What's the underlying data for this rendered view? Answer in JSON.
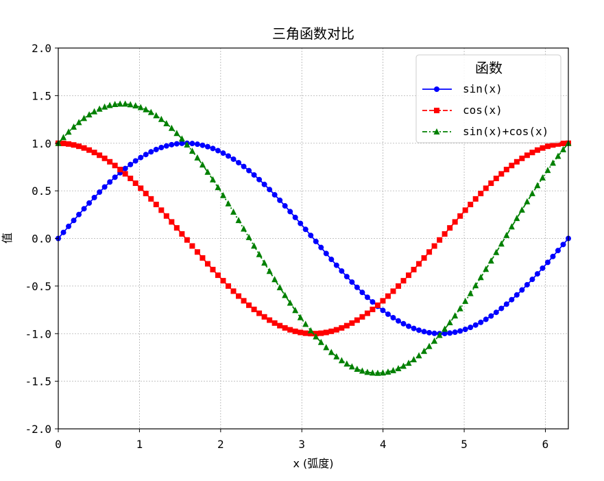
{
  "chart_data": {
    "type": "line",
    "title": "三角函数对比",
    "xlabel": "x (弧度)",
    "ylabel": "值",
    "xlim": [
      0,
      6.283
    ],
    "ylim": [
      -2.0,
      2.0
    ],
    "x_ticks": [
      0,
      1,
      2,
      3,
      4,
      5,
      6
    ],
    "x_tick_labels": [
      "0",
      "1",
      "2",
      "3",
      "4",
      "5",
      "6"
    ],
    "y_ticks": [
      -2.0,
      -1.5,
      -1.0,
      -0.5,
      0.0,
      0.5,
      1.0,
      1.5,
      2.0
    ],
    "y_tick_labels": [
      "-2.0",
      "-1.5",
      "-1.0",
      "-0.5",
      "0.0",
      "0.5",
      "1.0",
      "1.5",
      "2.0"
    ],
    "grid": true,
    "legend": {
      "title": "函数",
      "placement": "top-right"
    },
    "x": [
      0.0,
      0.2,
      0.4,
      0.6,
      0.8,
      1.0,
      1.2,
      1.4,
      1.6,
      1.8,
      2.0,
      2.2,
      2.4,
      2.6,
      2.8,
      3.0,
      3.2,
      3.4,
      3.6,
      3.8,
      4.0,
      4.2,
      4.4,
      4.6,
      4.8,
      5.0,
      5.2,
      5.4,
      5.6,
      5.8,
      6.0,
      6.283
    ],
    "series": [
      {
        "name": "sin(x)",
        "color": "#0000ff",
        "marker": "circle",
        "linestyle": "solid",
        "values": [
          0.0,
          0.199,
          0.389,
          0.565,
          0.717,
          0.841,
          0.932,
          0.985,
          1.0,
          0.974,
          0.909,
          0.808,
          0.675,
          0.516,
          0.335,
          0.141,
          -0.058,
          -0.256,
          -0.443,
          -0.612,
          -0.757,
          -0.872,
          -0.952,
          -0.994,
          -0.996,
          -0.959,
          -0.883,
          -0.773,
          -0.631,
          -0.465,
          -0.279,
          0.0
        ]
      },
      {
        "name": "cos(x)",
        "color": "#ff0000",
        "marker": "square",
        "linestyle": "dashed",
        "values": [
          1.0,
          0.98,
          0.921,
          0.825,
          0.697,
          0.54,
          0.362,
          0.17,
          -0.029,
          -0.227,
          -0.416,
          -0.589,
          -0.737,
          -0.857,
          -0.942,
          -0.99,
          -0.998,
          -0.967,
          -0.897,
          -0.791,
          -0.654,
          -0.49,
          -0.307,
          -0.112,
          0.087,
          0.284,
          0.469,
          0.635,
          0.776,
          0.886,
          0.96,
          1.0
        ]
      },
      {
        "name": "sin(x)+cos(x)",
        "color": "#008000",
        "marker": "triangle",
        "linestyle": "dashdot",
        "values": [
          1.0,
          1.179,
          1.31,
          1.39,
          1.414,
          1.382,
          1.294,
          1.155,
          0.971,
          0.747,
          0.493,
          0.219,
          -0.062,
          -0.341,
          -0.607,
          -0.849,
          -1.056,
          -1.223,
          -1.34,
          -1.403,
          -1.411,
          -1.362,
          -1.259,
          -1.106,
          -0.909,
          -0.675,
          -0.414,
          -0.138,
          0.145,
          0.421,
          0.681,
          1.0
        ]
      }
    ]
  }
}
